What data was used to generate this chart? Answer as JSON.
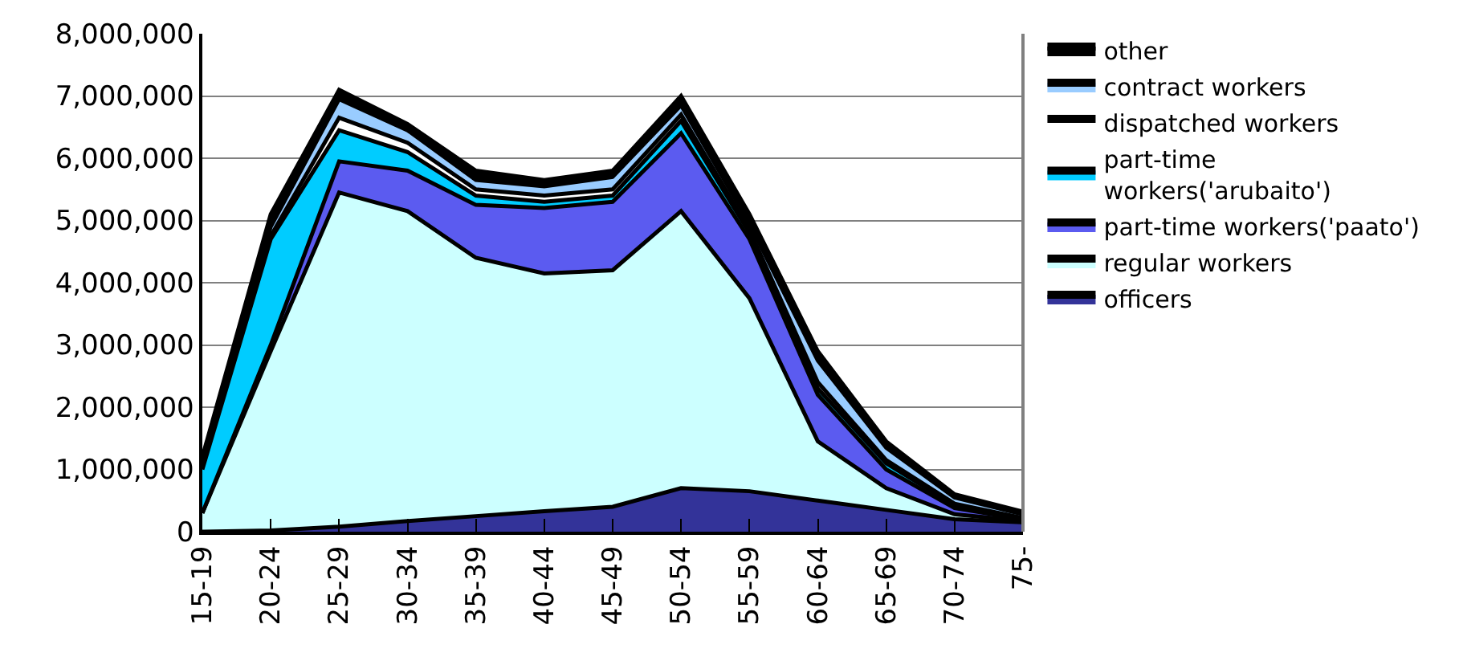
{
  "chart_data": {
    "type": "area",
    "stacked": true,
    "categories": [
      "15-19",
      "20-24",
      "25-29",
      "30-34",
      "35-39",
      "40-44",
      "45-49",
      "50-54",
      "55-59",
      "60-64",
      "65-69",
      "70-74",
      "75-"
    ],
    "series": [
      {
        "name": "officers",
        "color": "#333399",
        "values": [
          0,
          20000,
          80000,
          170000,
          250000,
          330000,
          400000,
          700000,
          650000,
          500000,
          350000,
          200000,
          150000
        ]
      },
      {
        "name": "regular workers",
        "color": "#ccffff",
        "values": [
          300000,
          2880000,
          5370000,
          4980000,
          4150000,
          3820000,
          3800000,
          4450000,
          3100000,
          950000,
          350000,
          80000,
          20000
        ]
      },
      {
        "name": "part-time workers('paato')",
        "color": "#5b5bf0",
        "values": [
          0,
          100000,
          500000,
          650000,
          850000,
          1050000,
          1100000,
          1250000,
          950000,
          750000,
          300000,
          100000,
          30000
        ]
      },
      {
        "name": "part-time\nworkers('arubaito')",
        "color": "#00ccff",
        "values": [
          700000,
          1700000,
          500000,
          300000,
          150000,
          100000,
          100000,
          200000,
          100000,
          100000,
          100000,
          40000,
          10000
        ]
      },
      {
        "name": "dispatched workers",
        "color": "#ffffff",
        "values": [
          50000,
          50000,
          200000,
          150000,
          100000,
          100000,
          100000,
          100000,
          50000,
          100000,
          50000,
          30000,
          10000
        ]
      },
      {
        "name": "contract workers",
        "color": "#99ccff",
        "values": [
          50000,
          150000,
          300000,
          200000,
          150000,
          150000,
          200000,
          150000,
          100000,
          350000,
          200000,
          100000,
          60000
        ]
      },
      {
        "name": "other",
        "color": "#000000",
        "values": [
          100000,
          200000,
          150000,
          100000,
          150000,
          100000,
          100000,
          150000,
          150000,
          150000,
          100000,
          50000,
          40000
        ]
      }
    ],
    "ylim": [
      0,
      8000000
    ],
    "yticks": [
      {
        "value": 0,
        "label": "0"
      },
      {
        "value": 1000000,
        "label": "1,000,000"
      },
      {
        "value": 2000000,
        "label": "2,000,000"
      },
      {
        "value": 3000000,
        "label": "3,000,000"
      },
      {
        "value": 4000000,
        "label": "4,000,000"
      },
      {
        "value": 5000000,
        "label": "5,000,000"
      },
      {
        "value": 6000000,
        "label": "6,000,000"
      },
      {
        "value": 7000000,
        "label": "7,000,000"
      },
      {
        "value": 8000000,
        "label": "8,000,000"
      }
    ],
    "grid": "y",
    "legend": "right",
    "marker": "none"
  }
}
